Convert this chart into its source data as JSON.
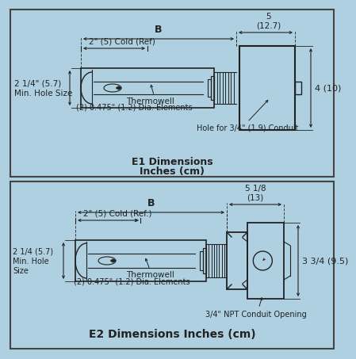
{
  "bg_color": "#aed0e0",
  "border_color": "#444444",
  "line_color": "#222222",
  "fill_color": "#aed0e0",
  "white_fill": "#ffffff",
  "title1_line1": "E1 Dimensions",
  "title1_line2": "Inches (cm)",
  "title2": "E2 Dimensions Inches (cm)",
  "label_B": "B",
  "label_5": "5\n(12.7)",
  "label_4": "4 (10)",
  "label_cold1": "2\" (5) Cold (Ref)",
  "label_hole1": "2 1/4\" (5.7)\nMin. Hole Size",
  "label_thermowell": "Thermowell",
  "label_elements": "(2) 0.475\" (1.2) Dia. Elements",
  "label_conduit1": "Hole for 3/4\" (1.9) Conduit",
  "label_B2": "B",
  "label_518": "5 1/8\n(13)",
  "label_334": "3 3/4 (9.5)",
  "label_cold2": "2\" (5) Cold (Ref.)",
  "label_hole2": "2 1/4 (5.7)\nMin. Hole\nSize",
  "label_thermowell2": "Thermowell",
  "label_elements2": "(2) 0.475\" (1.2) Dia. Elements",
  "label_conduit2": "3/4\" NPT Conduit Opening"
}
